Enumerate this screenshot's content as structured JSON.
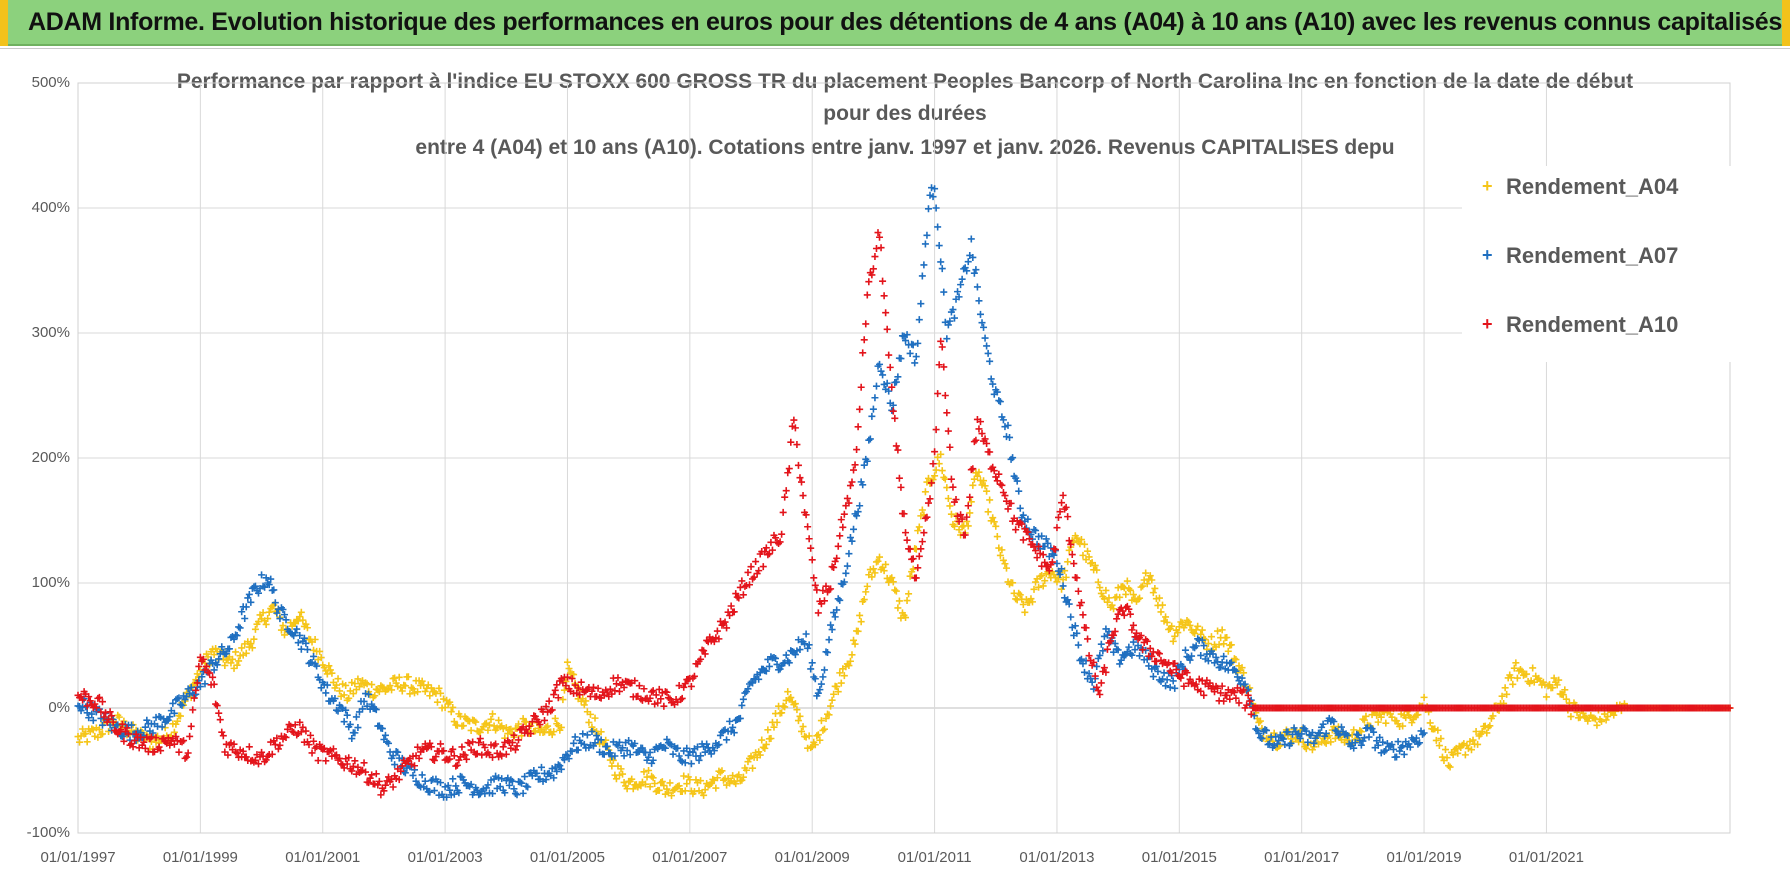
{
  "banner": {
    "title": "ADAM Informe. Evolution historique des performances en euros pour des détentions de 4 ans (A04) à 10 ans (A10) avec les revenus connus capitalisés"
  },
  "colors": {
    "banner_bg": "#8cd17d",
    "A04": "#f5c518",
    "A07": "#1f6fc0",
    "A10": "#e3141b",
    "axis_text": "#595959",
    "grid": "#d9d9d9"
  },
  "chart_data": {
    "type": "scatter",
    "title_lines": [
      "Performance par rapport à l'indice EU STOXX 600 GROSS TR  du placement Peoples Bancorp of North Carolina Inc en fonction de la date de début",
      "pour des durées",
      "entre 4 (A04) et 10 ans (A10).  Cotations entre janv. 1997 et janv. 2026. Revenus CAPITALISES depu"
    ],
    "xlabel": "",
    "ylabel": "",
    "y_unit": "%",
    "ylim": [
      -100,
      500
    ],
    "y_ticks": [
      -100,
      0,
      100,
      200,
      300,
      400,
      500
    ],
    "y_tick_labels": [
      "-100%",
      "0%",
      "100%",
      "200%",
      "300%",
      "400%",
      "500%"
    ],
    "xlim": [
      1997.0,
      2024.0
    ],
    "x_ticks": [
      1997,
      1999,
      2001,
      2003,
      2005,
      2007,
      2009,
      2011,
      2013,
      2015,
      2017,
      2019,
      2021
    ],
    "x_tick_labels": [
      "01/01/1997",
      "01/01/1999",
      "01/01/2001",
      "01/01/2003",
      "01/01/2005",
      "01/01/2007",
      "01/01/2009",
      "01/01/2011",
      "01/01/2013",
      "01/01/2015",
      "01/01/2017",
      "01/01/2019",
      "01/01/2021"
    ],
    "legend_position": "top-right",
    "marker": "+",
    "series": [
      {
        "name": "Rendement_A04",
        "color": "#f5c518",
        "points": [
          [
            1997.0,
            -25
          ],
          [
            1997.3,
            -20
          ],
          [
            1997.6,
            -10
          ],
          [
            1997.9,
            -20
          ],
          [
            1998.2,
            -28
          ],
          [
            1998.5,
            -20
          ],
          [
            1998.8,
            10
          ],
          [
            1999.0,
            30
          ],
          [
            1999.2,
            45
          ],
          [
            1999.5,
            35
          ],
          [
            1999.8,
            50
          ],
          [
            2000.0,
            70
          ],
          [
            2000.2,
            80
          ],
          [
            2000.4,
            60
          ],
          [
            2000.6,
            75
          ],
          [
            2000.8,
            55
          ],
          [
            2001.0,
            40
          ],
          [
            2001.2,
            20
          ],
          [
            2001.4,
            10
          ],
          [
            2001.6,
            20
          ],
          [
            2001.8,
            15
          ],
          [
            2002.0,
            15
          ],
          [
            2002.3,
            20
          ],
          [
            2002.6,
            15
          ],
          [
            2002.9,
            10
          ],
          [
            2003.2,
            -10
          ],
          [
            2003.5,
            -15
          ],
          [
            2003.8,
            -10
          ],
          [
            2004.0,
            -20
          ],
          [
            2004.3,
            -15
          ],
          [
            2004.6,
            -20
          ],
          [
            2004.9,
            -10
          ],
          [
            2005.0,
            30
          ],
          [
            2005.2,
            10
          ],
          [
            2005.4,
            -10
          ],
          [
            2005.6,
            -30
          ],
          [
            2005.8,
            -50
          ],
          [
            2006.0,
            -60
          ],
          [
            2006.3,
            -55
          ],
          [
            2006.6,
            -65
          ],
          [
            2006.9,
            -60
          ],
          [
            2007.2,
            -65
          ],
          [
            2007.5,
            -55
          ],
          [
            2007.8,
            -60
          ],
          [
            2008.0,
            -45
          ],
          [
            2008.3,
            -20
          ],
          [
            2008.6,
            10
          ],
          [
            2008.8,
            -10
          ],
          [
            2009.0,
            -35
          ],
          [
            2009.2,
            -10
          ],
          [
            2009.5,
            30
          ],
          [
            2009.7,
            50
          ],
          [
            2009.9,
            100
          ],
          [
            2010.1,
            120
          ],
          [
            2010.3,
            100
          ],
          [
            2010.5,
            70
          ],
          [
            2010.7,
            130
          ],
          [
            2010.9,
            180
          ],
          [
            2011.1,
            200
          ],
          [
            2011.3,
            150
          ],
          [
            2011.5,
            140
          ],
          [
            2011.7,
            190
          ],
          [
            2011.9,
            160
          ],
          [
            2012.1,
            120
          ],
          [
            2012.3,
            90
          ],
          [
            2012.5,
            80
          ],
          [
            2012.7,
            100
          ],
          [
            2012.9,
            110
          ],
          [
            2013.1,
            100
          ],
          [
            2013.3,
            140
          ],
          [
            2013.5,
            120
          ],
          [
            2013.7,
            100
          ],
          [
            2013.9,
            80
          ],
          [
            2014.1,
            100
          ],
          [
            2014.3,
            80
          ],
          [
            2014.5,
            110
          ],
          [
            2014.7,
            80
          ],
          [
            2014.9,
            60
          ],
          [
            2015.1,
            70
          ],
          [
            2015.3,
            60
          ],
          [
            2015.5,
            50
          ],
          [
            2015.7,
            60
          ],
          [
            2015.9,
            40
          ],
          [
            2016.1,
            20
          ],
          [
            2016.3,
            -15
          ],
          [
            2016.6,
            -25
          ],
          [
            2016.9,
            -20
          ],
          [
            2017.2,
            -30
          ],
          [
            2017.5,
            -20
          ],
          [
            2017.8,
            -25
          ],
          [
            2018.1,
            -10
          ],
          [
            2018.4,
            -5
          ],
          [
            2018.7,
            -10
          ],
          [
            2019.0,
            5
          ],
          [
            2019.2,
            -20
          ],
          [
            2019.4,
            -45
          ],
          [
            2019.7,
            -30
          ],
          [
            2020.0,
            -20
          ],
          [
            2020.3,
            10
          ],
          [
            2020.5,
            30
          ],
          [
            2020.8,
            25
          ],
          [
            2021.0,
            15
          ],
          [
            2021.2,
            20
          ],
          [
            2021.4,
            0
          ],
          [
            2021.7,
            -10
          ],
          [
            2022.0,
            -5
          ],
          [
            2022.3,
            0
          ],
          [
            2022.6,
            0
          ],
          [
            2023.0,
            0
          ],
          [
            2023.5,
            0
          ],
          [
            2024.0,
            0
          ]
        ]
      },
      {
        "name": "Rendement_A07",
        "color": "#1f6fc0",
        "points": [
          [
            1997.0,
            5
          ],
          [
            1997.3,
            -5
          ],
          [
            1997.6,
            -15
          ],
          [
            1997.9,
            -20
          ],
          [
            1998.2,
            -15
          ],
          [
            1998.5,
            -5
          ],
          [
            1998.8,
            10
          ],
          [
            1999.0,
            20
          ],
          [
            1999.2,
            35
          ],
          [
            1999.5,
            50
          ],
          [
            1999.7,
            75
          ],
          [
            1999.9,
            95
          ],
          [
            2000.1,
            105
          ],
          [
            2000.3,
            75
          ],
          [
            2000.5,
            65
          ],
          [
            2000.7,
            50
          ],
          [
            2000.9,
            30
          ],
          [
            2001.1,
            10
          ],
          [
            2001.3,
            0
          ],
          [
            2001.5,
            -20
          ],
          [
            2001.7,
            10
          ],
          [
            2001.9,
            -10
          ],
          [
            2002.1,
            -35
          ],
          [
            2002.4,
            -50
          ],
          [
            2002.7,
            -60
          ],
          [
            2003.0,
            -65
          ],
          [
            2003.3,
            -60
          ],
          [
            2003.6,
            -65
          ],
          [
            2003.9,
            -60
          ],
          [
            2004.2,
            -65
          ],
          [
            2004.5,
            -55
          ],
          [
            2004.8,
            -50
          ],
          [
            2005.1,
            -30
          ],
          [
            2005.4,
            -25
          ],
          [
            2005.7,
            -35
          ],
          [
            2006.0,
            -30
          ],
          [
            2006.3,
            -40
          ],
          [
            2006.6,
            -30
          ],
          [
            2006.9,
            -40
          ],
          [
            2007.2,
            -35
          ],
          [
            2007.5,
            -25
          ],
          [
            2007.8,
            -10
          ],
          [
            2008.0,
            20
          ],
          [
            2008.3,
            35
          ],
          [
            2008.6,
            40
          ],
          [
            2008.9,
            55
          ],
          [
            2009.1,
            10
          ],
          [
            2009.3,
            60
          ],
          [
            2009.5,
            100
          ],
          [
            2009.7,
            150
          ],
          [
            2009.9,
            200
          ],
          [
            2010.1,
            280
          ],
          [
            2010.3,
            240
          ],
          [
            2010.5,
            300
          ],
          [
            2010.7,
            280
          ],
          [
            2010.9,
            400
          ],
          [
            2011.0,
            420
          ],
          [
            2011.2,
            300
          ],
          [
            2011.4,
            330
          ],
          [
            2011.6,
            370
          ],
          [
            2011.8,
            300
          ],
          [
            2012.0,
            250
          ],
          [
            2012.2,
            220
          ],
          [
            2012.4,
            160
          ],
          [
            2012.6,
            140
          ],
          [
            2012.8,
            130
          ],
          [
            2013.0,
            120
          ],
          [
            2013.2,
            80
          ],
          [
            2013.4,
            40
          ],
          [
            2013.6,
            20
          ],
          [
            2013.8,
            60
          ],
          [
            2014.0,
            40
          ],
          [
            2014.3,
            50
          ],
          [
            2014.6,
            30
          ],
          [
            2014.9,
            20
          ],
          [
            2015.1,
            40
          ],
          [
            2015.3,
            50
          ],
          [
            2015.6,
            40
          ],
          [
            2015.9,
            30
          ],
          [
            2016.1,
            20
          ],
          [
            2016.3,
            -20
          ],
          [
            2016.6,
            -30
          ],
          [
            2016.9,
            -20
          ],
          [
            2017.2,
            -25
          ],
          [
            2017.5,
            -10
          ],
          [
            2017.8,
            -30
          ],
          [
            2018.1,
            -20
          ],
          [
            2018.4,
            -35
          ],
          [
            2018.7,
            -30
          ],
          [
            2019.0,
            -20
          ]
        ]
      },
      {
        "name": "Rendement_A10",
        "color": "#e3141b",
        "points": [
          [
            1997.0,
            10
          ],
          [
            1997.3,
            5
          ],
          [
            1997.6,
            -15
          ],
          [
            1997.9,
            -25
          ],
          [
            1998.2,
            -30
          ],
          [
            1998.5,
            -25
          ],
          [
            1998.8,
            -35
          ],
          [
            1999.0,
            40
          ],
          [
            1999.2,
            20
          ],
          [
            1999.4,
            -30
          ],
          [
            1999.7,
            -35
          ],
          [
            2000.0,
            -40
          ],
          [
            2000.3,
            -25
          ],
          [
            2000.6,
            -15
          ],
          [
            2000.9,
            -35
          ],
          [
            2001.2,
            -40
          ],
          [
            2001.5,
            -45
          ],
          [
            2001.8,
            -55
          ],
          [
            2002.0,
            -65
          ],
          [
            2002.3,
            -50
          ],
          [
            2002.6,
            -35
          ],
          [
            2002.9,
            -35
          ],
          [
            2003.2,
            -40
          ],
          [
            2003.5,
            -30
          ],
          [
            2003.8,
            -35
          ],
          [
            2004.1,
            -30
          ],
          [
            2004.4,
            -15
          ],
          [
            2004.7,
            0
          ],
          [
            2004.9,
            20
          ],
          [
            2005.2,
            15
          ],
          [
            2005.5,
            10
          ],
          [
            2005.8,
            20
          ],
          [
            2006.1,
            15
          ],
          [
            2006.4,
            10
          ],
          [
            2006.7,
            5
          ],
          [
            2007.0,
            20
          ],
          [
            2007.3,
            50
          ],
          [
            2007.6,
            70
          ],
          [
            2007.9,
            100
          ],
          [
            2008.2,
            120
          ],
          [
            2008.5,
            140
          ],
          [
            2008.7,
            230
          ],
          [
            2008.9,
            150
          ],
          [
            2009.1,
            80
          ],
          [
            2009.3,
            100
          ],
          [
            2009.5,
            150
          ],
          [
            2009.7,
            190
          ],
          [
            2009.9,
            330
          ],
          [
            2010.1,
            380
          ],
          [
            2010.3,
            250
          ],
          [
            2010.5,
            150
          ],
          [
            2010.7,
            100
          ],
          [
            2010.9,
            160
          ],
          [
            2011.0,
            200
          ],
          [
            2011.1,
            300
          ],
          [
            2011.3,
            170
          ],
          [
            2011.5,
            140
          ],
          [
            2011.7,
            230
          ],
          [
            2011.9,
            200
          ],
          [
            2012.1,
            180
          ],
          [
            2012.3,
            150
          ],
          [
            2012.6,
            130
          ],
          [
            2012.9,
            110
          ],
          [
            2013.1,
            170
          ],
          [
            2013.3,
            110
          ],
          [
            2013.5,
            50
          ],
          [
            2013.7,
            10
          ],
          [
            2013.9,
            60
          ],
          [
            2014.1,
            80
          ],
          [
            2014.4,
            50
          ],
          [
            2014.7,
            40
          ],
          [
            2014.9,
            30
          ],
          [
            2015.2,
            20
          ],
          [
            2015.5,
            15
          ],
          [
            2015.8,
            10
          ],
          [
            2016.0,
            10
          ],
          [
            2016.2,
            0
          ],
          [
            2016.6,
            0
          ],
          [
            2017.0,
            0
          ],
          [
            2017.5,
            0
          ],
          [
            2018.0,
            0
          ],
          [
            2018.5,
            0
          ],
          [
            2019.0,
            0
          ],
          [
            2019.5,
            0
          ],
          [
            2020.0,
            0
          ],
          [
            2020.5,
            0
          ],
          [
            2021.0,
            0
          ],
          [
            2021.5,
            0
          ],
          [
            2022.0,
            0
          ],
          [
            2022.5,
            0
          ],
          [
            2023.0,
            0
          ],
          [
            2023.5,
            0
          ],
          [
            2024.0,
            0
          ]
        ]
      }
    ]
  }
}
